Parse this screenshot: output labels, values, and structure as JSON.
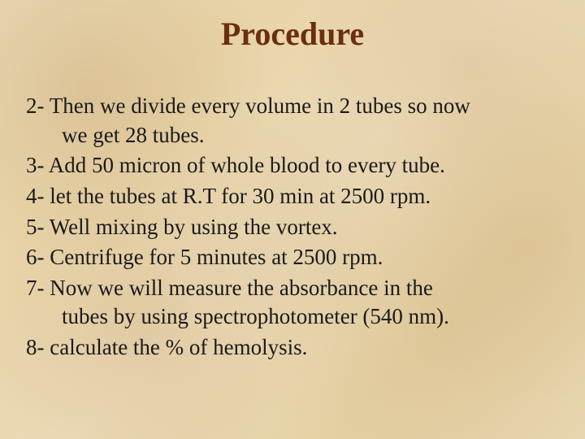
{
  "slide": {
    "title": "Procedure",
    "title_color": "#6b2e10",
    "title_fontsize": 40,
    "body_color": "#1a1a1a",
    "body_fontsize": 27,
    "line_height": 1.32,
    "items": [
      {
        "n": "2-",
        "text": "Then we divide every volume in 2 tubes so now",
        "cont": "we get 28 tubes."
      },
      {
        "n": "3-",
        "text": "Add 50 micron of whole blood to every tube."
      },
      {
        "n": "4-",
        "text": "let the tubes at R.T for 30 min at 2500 rpm."
      },
      {
        "n": "5-",
        "text": "Well mixing by using the vortex."
      },
      {
        "n": "6-",
        "text": "Centrifuge for 5 minutes at 2500 rpm."
      },
      {
        "n": "7-",
        "text": "Now we will measure the absorbance in the",
        "cont": "tubes by using spectrophotometer (540 nm)."
      },
      {
        "n": "8-",
        "text": "calculate the % of hemolysis."
      }
    ]
  }
}
